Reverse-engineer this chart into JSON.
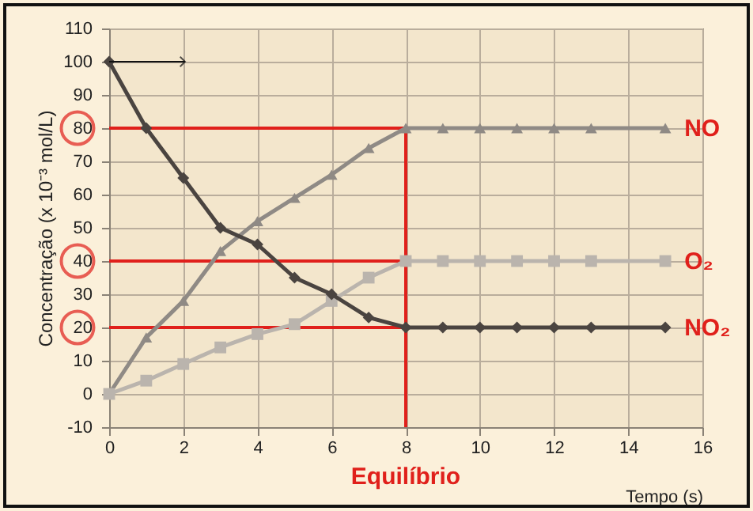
{
  "chart_data": {
    "type": "line",
    "xlabel": "Tempo (s)",
    "ylabel": "Concentração (x 10⁻³ mol/L)",
    "x": [
      0,
      1,
      2,
      3,
      4,
      5,
      6,
      7,
      8,
      9,
      10,
      11,
      12,
      13,
      15
    ],
    "series": [
      {
        "name": "NO",
        "color": "#8f8a85",
        "marker": "triangle",
        "values": [
          0,
          17,
          28,
          43,
          52,
          59,
          66,
          74,
          80,
          80,
          80,
          80,
          80,
          80,
          80
        ]
      },
      {
        "name": "O₂",
        "color": "#bab4ad",
        "marker": "square",
        "values": [
          0,
          4,
          9,
          14,
          18,
          21,
          28,
          35,
          40,
          40,
          40,
          40,
          40,
          40,
          40
        ]
      },
      {
        "name": "NO₂",
        "color": "#4a4440",
        "marker": "diamond",
        "values": [
          100,
          80,
          65,
          50,
          45,
          35,
          30,
          23,
          20,
          20,
          20,
          20,
          20,
          20,
          20
        ]
      }
    ],
    "xlim": [
      0,
      16
    ],
    "xticks": [
      0,
      2,
      4,
      6,
      8,
      10,
      12,
      14,
      16
    ],
    "ylim": [
      -10,
      110
    ],
    "yticks": [
      -10,
      0,
      10,
      20,
      30,
      40,
      50,
      60,
      70,
      80,
      90,
      100,
      110
    ],
    "ref_lines": [
      {
        "axis": "y",
        "value": 80,
        "color": "#e0201b"
      },
      {
        "axis": "y",
        "value": 40,
        "color": "#e0201b"
      },
      {
        "axis": "y",
        "value": 20,
        "color": "#e0201b"
      },
      {
        "axis": "x",
        "value": 8,
        "label": "Equilíbrio",
        "color": "#e0201b"
      }
    ],
    "grid": true
  }
}
